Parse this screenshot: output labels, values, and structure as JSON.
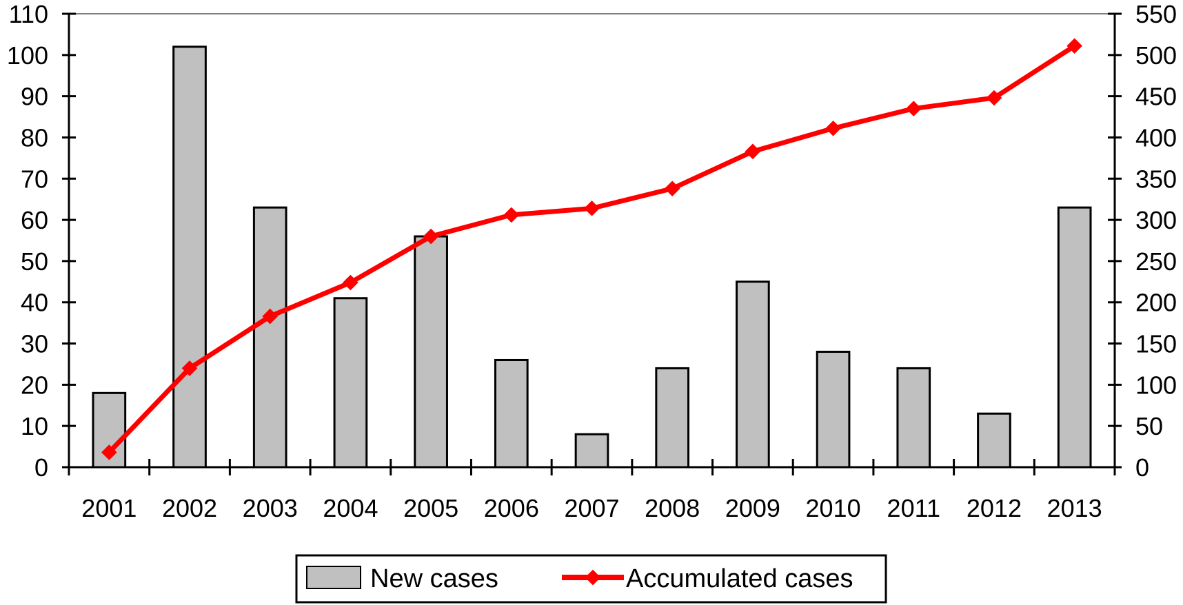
{
  "chart_data": {
    "type": "bar",
    "categories": [
      "2001",
      "2002",
      "2003",
      "2004",
      "2005",
      "2006",
      "2007",
      "2008",
      "2009",
      "2010",
      "2011",
      "2012",
      "2013"
    ],
    "series": [
      {
        "name": "New cases",
        "type": "bar",
        "axis": "left",
        "values": [
          18,
          102,
          63,
          41,
          56,
          26,
          8,
          24,
          45,
          28,
          24,
          13,
          63
        ],
        "color": "#c0c0c0"
      },
      {
        "name": "Accumulated cases",
        "type": "line",
        "axis": "right",
        "values": [
          18,
          120,
          183,
          224,
          280,
          306,
          314,
          338,
          383,
          411,
          435,
          448,
          511
        ],
        "color": "#ff0000"
      }
    ],
    "ylim_left": [
      0,
      110
    ],
    "yticks_left": [
      "0",
      "10",
      "20",
      "30",
      "40",
      "50",
      "60",
      "70",
      "80",
      "90",
      "100",
      "110"
    ],
    "ylim_right": [
      0,
      550
    ],
    "yticks_right": [
      "0",
      "50",
      "100",
      "150",
      "200",
      "250",
      "300",
      "350",
      "400",
      "450",
      "500",
      "550"
    ],
    "title": "",
    "xlabel": "",
    "ylabel": "",
    "grid": false,
    "legend": {
      "position": "bottom-center",
      "entries": [
        "New cases",
        "Accumulated cases"
      ]
    }
  }
}
